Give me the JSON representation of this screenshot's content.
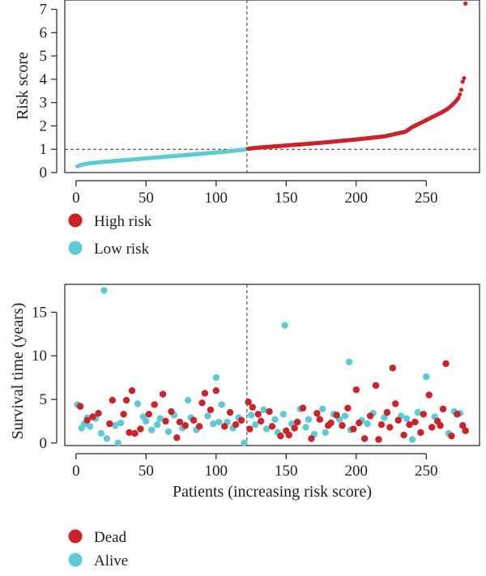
{
  "colors": {
    "high": "#cc2229",
    "low": "#5ecad6",
    "dead": "#cc2229",
    "alive": "#5ecad6",
    "axis": "#222222"
  },
  "chart_data": [
    {
      "type": "scatter",
      "title": "",
      "xlabel": "",
      "ylabel": "Risk score",
      "xlim": [
        -8,
        288
      ],
      "ylim": [
        0,
        7.4
      ],
      "xticks": [
        0,
        50,
        100,
        150,
        200,
        250
      ],
      "yticks": [
        0,
        1,
        2,
        3,
        4,
        5,
        6,
        7
      ],
      "cutoff_x": 122,
      "cutoff_y": 1,
      "n_patients": 278,
      "legend": {
        "placement": "below",
        "entries": [
          {
            "label": "High risk",
            "color": "#cc2229"
          },
          {
            "label": "Low risk",
            "color": "#5ecad6"
          }
        ]
      },
      "curve_knots": {
        "x": [
          1,
          5,
          10,
          20,
          40,
          60,
          80,
          100,
          115,
          121,
          122,
          130,
          150,
          175,
          200,
          220,
          235,
          240,
          245,
          250,
          255,
          260,
          265,
          268,
          271,
          273,
          274,
          275,
          276,
          277,
          278
        ],
        "y": [
          0.27,
          0.35,
          0.4,
          0.46,
          0.56,
          0.66,
          0.76,
          0.86,
          0.95,
          0.99,
          1.02,
          1.07,
          1.16,
          1.28,
          1.42,
          1.55,
          1.75,
          1.95,
          2.1,
          2.25,
          2.4,
          2.55,
          2.72,
          2.87,
          3.05,
          3.2,
          3.35,
          3.55,
          3.9,
          4.05,
          7.25
        ]
      }
    },
    {
      "type": "scatter",
      "title": "",
      "xlabel": "Patients (increasing risk score)",
      "ylabel": "Survival time (years)",
      "xlim": [
        -8,
        288
      ],
      "ylim": [
        -0.3,
        18.2
      ],
      "xticks": [
        0,
        50,
        100,
        150,
        200,
        250
      ],
      "yticks": [
        0,
        5,
        10,
        15
      ],
      "cutoff_x": 122,
      "legend": {
        "placement": "below",
        "entries": [
          {
            "label": "Dead",
            "color": "#cc2229"
          },
          {
            "label": "Alive",
            "color": "#5ecad6"
          }
        ]
      },
      "series": [
        {
          "name": "Dead",
          "points": [
            [
              3,
              4.2
            ],
            [
              8,
              2.6
            ],
            [
              12,
              3.0
            ],
            [
              16,
              3.4
            ],
            [
              24,
              2.2
            ],
            [
              26,
              4.9
            ],
            [
              34,
              3.3
            ],
            [
              36,
              4.9
            ],
            [
              38,
              1.2
            ],
            [
              40,
              6.0
            ],
            [
              42,
              1.1
            ],
            [
              46,
              1.6
            ],
            [
              52,
              3.3
            ],
            [
              56,
              4.4
            ],
            [
              62,
              5.6
            ],
            [
              64,
              2.5
            ],
            [
              68,
              3.6
            ],
            [
              72,
              0.6
            ],
            [
              74,
              2.4
            ],
            [
              78,
              2.0
            ],
            [
              84,
              2.6
            ],
            [
              88,
              1.9
            ],
            [
              90,
              4.6
            ],
            [
              92,
              5.7
            ],
            [
              96,
              3.8
            ],
            [
              100,
              6.0
            ],
            [
              106,
              1.9
            ],
            [
              110,
              3.5
            ],
            [
              114,
              2.1
            ],
            [
              118,
              2.6
            ],
            [
              123,
              4.7
            ],
            [
              124,
              1.6
            ],
            [
              126,
              4.1
            ],
            [
              130,
              3.3
            ],
            [
              132,
              2.5
            ],
            [
              138,
              3.6
            ],
            [
              140,
              1.9
            ],
            [
              146,
              0.8
            ],
            [
              150,
              1.4
            ],
            [
              152,
              0.9
            ],
            [
              156,
              1.7
            ],
            [
              158,
              2.4
            ],
            [
              162,
              4.0
            ],
            [
              168,
              0.5
            ],
            [
              172,
              3.4
            ],
            [
              174,
              2.7
            ],
            [
              180,
              2.0
            ],
            [
              182,
              2.3
            ],
            [
              186,
              3.2
            ],
            [
              190,
              2.0
            ],
            [
              194,
              4.0
            ],
            [
              198,
              1.6
            ],
            [
              200,
              6.1
            ],
            [
              202,
              2.3
            ],
            [
              206,
              0.5
            ],
            [
              210,
              3.1
            ],
            [
              214,
              6.6
            ],
            [
              216,
              0.4
            ],
            [
              218,
              2.1
            ],
            [
              222,
              3.5
            ],
            [
              224,
              1.8
            ],
            [
              226,
              8.6
            ],
            [
              228,
              4.5
            ],
            [
              230,
              2.6
            ],
            [
              234,
              0.9
            ],
            [
              238,
              2.1
            ],
            [
              242,
              2.4
            ],
            [
              246,
              1.2
            ],
            [
              248,
              3.3
            ],
            [
              252,
              5.5
            ],
            [
              254,
              1.8
            ],
            [
              258,
              2.5
            ],
            [
              260,
              2.0
            ],
            [
              262,
              3.9
            ],
            [
              264,
              9.1
            ],
            [
              268,
              0.8
            ],
            [
              272,
              3.3
            ],
            [
              276,
              2.0
            ],
            [
              278,
              1.4
            ]
          ]
        },
        {
          "name": "Alive",
          "points": [
            [
              1,
              4.4
            ],
            [
              2,
              4.3
            ],
            [
              4,
              1.7
            ],
            [
              6,
              2.2
            ],
            [
              8,
              2.9
            ],
            [
              10,
              1.9
            ],
            [
              14,
              2.8
            ],
            [
              18,
              1.1
            ],
            [
              20,
              17.5
            ],
            [
              22,
              0.5
            ],
            [
              28,
              2.0
            ],
            [
              30,
              0.0
            ],
            [
              32,
              2.3
            ],
            [
              44,
              4.5
            ],
            [
              48,
              3.0
            ],
            [
              50,
              2.5
            ],
            [
              54,
              1.5
            ],
            [
              58,
              2.1
            ],
            [
              60,
              2.8
            ],
            [
              66,
              1.3
            ],
            [
              70,
              3.2
            ],
            [
              76,
              1.7
            ],
            [
              80,
              4.9
            ],
            [
              82,
              2.9
            ],
            [
              86,
              1.5
            ],
            [
              94,
              3.1
            ],
            [
              98,
              2.2
            ],
            [
              100,
              7.5
            ],
            [
              102,
              2.4
            ],
            [
              104,
              4.4
            ],
            [
              108,
              2.4
            ],
            [
              112,
              1.7
            ],
            [
              116,
              2.9
            ],
            [
              120,
              0.0
            ],
            [
              125,
              3.2
            ],
            [
              128,
              2.1
            ],
            [
              134,
              3.8
            ],
            [
              136,
              1.6
            ],
            [
              142,
              2.7
            ],
            [
              144,
              1.2
            ],
            [
              148,
              3.3
            ],
            [
              149,
              13.5
            ],
            [
              154,
              2.2
            ],
            [
              160,
              3.9
            ],
            [
              164,
              1.8
            ],
            [
              166,
              2.7
            ],
            [
              170,
              1.0
            ],
            [
              176,
              3.9
            ],
            [
              178,
              1.2
            ],
            [
              184,
              3.3
            ],
            [
              188,
              2.7
            ],
            [
              192,
              3.1
            ],
            [
              195,
              9.3
            ],
            [
              196,
              1.5
            ],
            [
              204,
              2.6
            ],
            [
              208,
              2.2
            ],
            [
              212,
              3.4
            ],
            [
              220,
              2.9
            ],
            [
              232,
              3.1
            ],
            [
              236,
              2.8
            ],
            [
              240,
              0.4
            ],
            [
              244,
              3.5
            ],
            [
              250,
              7.6
            ],
            [
              256,
              3.0
            ],
            [
              266,
              1.1
            ],
            [
              270,
              3.6
            ],
            [
              274,
              3.4
            ]
          ]
        }
      ]
    }
  ]
}
